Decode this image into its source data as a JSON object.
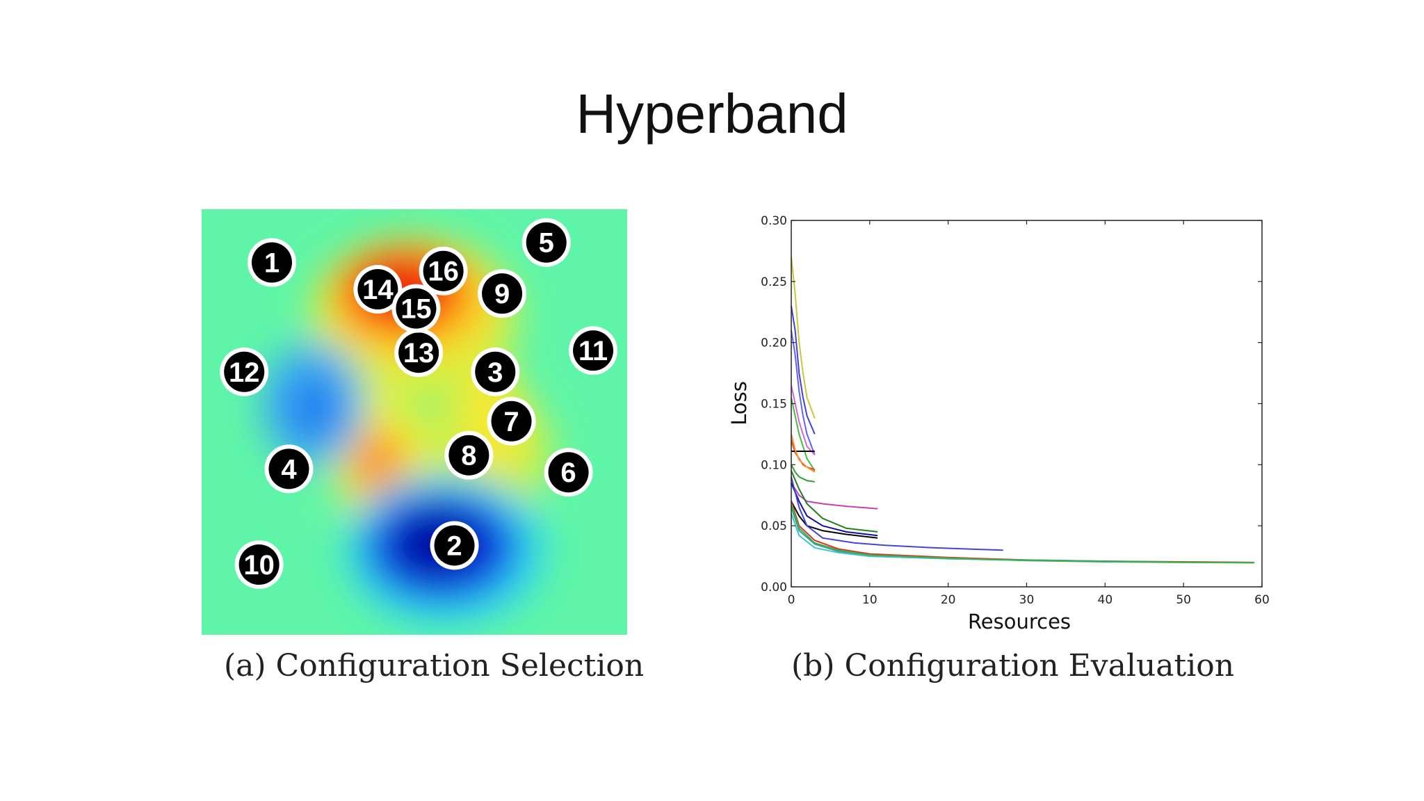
{
  "slide": {
    "title": "Hyperband"
  },
  "panel_a": {
    "caption": "(a) Configuration Selection",
    "points": [
      {
        "label": "1",
        "x": 0.165,
        "y": 0.125
      },
      {
        "label": "2",
        "x": 0.594,
        "y": 0.79
      },
      {
        "label": "3",
        "x": 0.69,
        "y": 0.382
      },
      {
        "label": "4",
        "x": 0.205,
        "y": 0.61
      },
      {
        "label": "5",
        "x": 0.81,
        "y": 0.078
      },
      {
        "label": "6",
        "x": 0.862,
        "y": 0.618
      },
      {
        "label": "7",
        "x": 0.728,
        "y": 0.498
      },
      {
        "label": "8",
        "x": 0.628,
        "y": 0.578
      },
      {
        "label": "9",
        "x": 0.706,
        "y": 0.198
      },
      {
        "label": "10",
        "x": 0.135,
        "y": 0.835
      },
      {
        "label": "11",
        "x": 0.92,
        "y": 0.332
      },
      {
        "label": "12",
        "x": 0.1,
        "y": 0.382
      },
      {
        "label": "13",
        "x": 0.51,
        "y": 0.337
      },
      {
        "label": "14",
        "x": 0.414,
        "y": 0.188
      },
      {
        "label": "15",
        "x": 0.504,
        "y": 0.233
      },
      {
        "label": "16",
        "x": 0.568,
        "y": 0.145
      }
    ]
  },
  "chart_data": {
    "type": "line",
    "title": "",
    "caption": "(b) Configuration Evaluation",
    "xlabel": "Resources",
    "ylabel": "Loss",
    "xlim": [
      0,
      60
    ],
    "ylim": [
      0,
      0.3
    ],
    "xticks": [
      "0",
      "10",
      "20",
      "30",
      "40",
      "50",
      "60"
    ],
    "yticks": [
      "0.00",
      "0.05",
      "0.10",
      "0.15",
      "0.20",
      "0.25",
      "0.30"
    ],
    "grid": false,
    "series": [
      {
        "color": "#c8c832",
        "x": [
          0,
          0.5,
          1,
          1.5,
          2,
          3
        ],
        "y": [
          0.27,
          0.24,
          0.2,
          0.175,
          0.155,
          0.138
        ]
      },
      {
        "color": "#4040e0",
        "x": [
          0,
          0.5,
          1,
          1.5,
          2,
          3
        ],
        "y": [
          0.23,
          0.21,
          0.175,
          0.155,
          0.14,
          0.125
        ]
      },
      {
        "color": "#6060ff",
        "x": [
          0,
          0.5,
          1,
          1.5,
          2,
          3
        ],
        "y": [
          0.21,
          0.19,
          0.16,
          0.14,
          0.125,
          0.108
        ]
      },
      {
        "color": "#e060e0",
        "x": [
          0,
          0.5,
          1,
          1.5,
          2,
          3
        ],
        "y": [
          0.165,
          0.15,
          0.135,
          0.125,
          0.115,
          0.108
        ]
      },
      {
        "color": "#40c040",
        "x": [
          0,
          0.5,
          1,
          1.5,
          2,
          3
        ],
        "y": [
          0.155,
          0.14,
          0.125,
          0.115,
          0.105,
          0.095
        ]
      },
      {
        "color": "#e04040",
        "x": [
          0,
          0.5,
          1,
          1.5,
          2,
          3
        ],
        "y": [
          0.12,
          0.11,
          0.105,
          0.1,
          0.098,
          0.096
        ]
      },
      {
        "color": "#000000",
        "x": [
          0,
          3
        ],
        "y": [
          0.111,
          0.111
        ]
      },
      {
        "color": "#ff9020",
        "x": [
          0,
          0.5,
          1,
          2,
          3
        ],
        "y": [
          0.125,
          0.112,
          0.104,
          0.098,
          0.094
        ]
      },
      {
        "color": "#30a030",
        "x": [
          0,
          0.5,
          1,
          2,
          3
        ],
        "y": [
          0.1,
          0.094,
          0.09,
          0.087,
          0.086
        ]
      },
      {
        "color": "#c040c0",
        "x": [
          0,
          1,
          2,
          4,
          7,
          11
        ],
        "y": [
          0.085,
          0.075,
          0.07,
          0.068,
          0.066,
          0.064
        ]
      },
      {
        "color": "#208020",
        "x": [
          0,
          1,
          2,
          4,
          7,
          11
        ],
        "y": [
          0.095,
          0.08,
          0.068,
          0.056,
          0.048,
          0.045
        ]
      },
      {
        "color": "#1010a0",
        "x": [
          0,
          1,
          2,
          4,
          7,
          11
        ],
        "y": [
          0.085,
          0.07,
          0.058,
          0.05,
          0.045,
          0.042
        ]
      },
      {
        "color": "#000000",
        "x": [
          0,
          1,
          2,
          4,
          7,
          11
        ],
        "y": [
          0.07,
          0.058,
          0.05,
          0.046,
          0.043,
          0.04
        ]
      },
      {
        "color": "#4444dd",
        "x": [
          0,
          1,
          2,
          4,
          8,
          12,
          18,
          27
        ],
        "y": [
          0.09,
          0.065,
          0.05,
          0.04,
          0.036,
          0.034,
          0.032,
          0.03
        ]
      },
      {
        "color": "#e03030",
        "x": [
          0,
          1,
          3,
          6,
          10,
          20,
          30,
          40,
          50,
          59
        ],
        "y": [
          0.07,
          0.05,
          0.038,
          0.031,
          0.027,
          0.024,
          0.022,
          0.021,
          0.0205,
          0.02
        ]
      },
      {
        "color": "#30a0a0",
        "x": [
          0,
          1,
          3,
          6,
          10,
          20,
          30,
          40,
          50,
          59
        ],
        "y": [
          0.065,
          0.046,
          0.035,
          0.029,
          0.026,
          0.023,
          0.022,
          0.021,
          0.0202,
          0.0198
        ]
      },
      {
        "color": "#40c0d0",
        "x": [
          0,
          1,
          3,
          6,
          10,
          20,
          27
        ],
        "y": [
          0.06,
          0.042,
          0.032,
          0.028,
          0.025,
          0.023,
          0.022
        ]
      },
      {
        "color": "#40b040",
        "x": [
          0,
          1,
          3,
          6,
          10,
          20,
          30,
          40,
          50,
          59
        ],
        "y": [
          0.068,
          0.048,
          0.036,
          0.03,
          0.026,
          0.0235,
          0.0215,
          0.0205,
          0.02,
          0.0197
        ]
      }
    ]
  }
}
